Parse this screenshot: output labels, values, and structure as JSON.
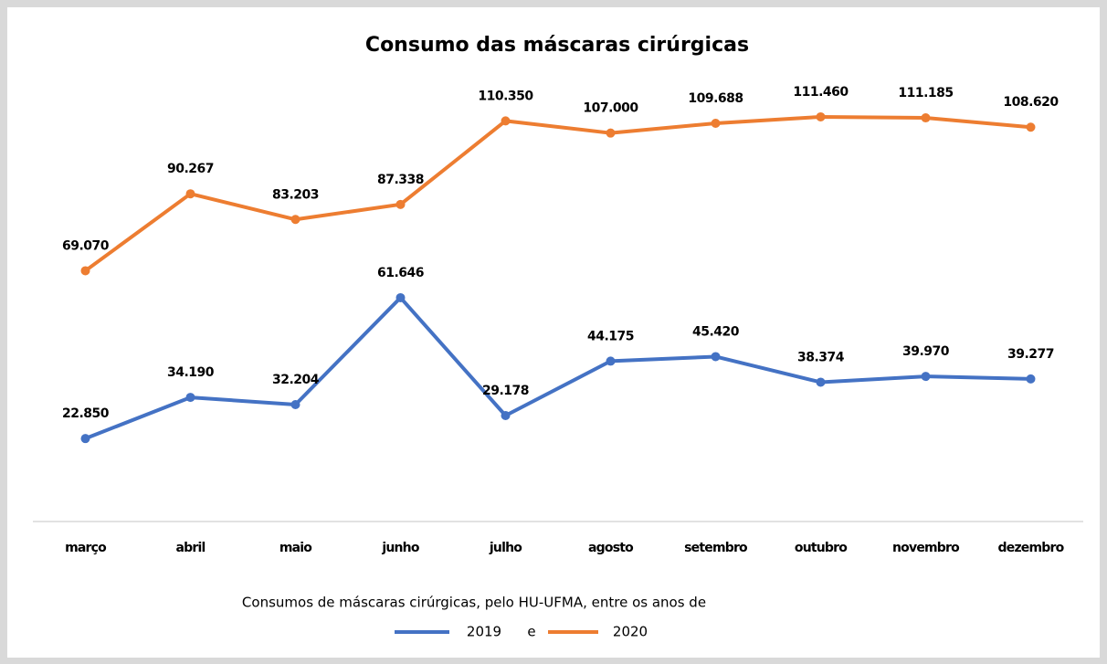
{
  "chart_data": {
    "type": "line",
    "title": "Consumo das máscaras cirúrgicas",
    "categories": [
      "março",
      "abril",
      "maio",
      "junho",
      "julho",
      "agosto",
      "setembro",
      "outubro",
      "novembro",
      "dezembro"
    ],
    "series": [
      {
        "name": "2019",
        "color": "#4472c4",
        "values": [
          22850,
          34190,
          32204,
          61646,
          29178,
          44175,
          45420,
          38374,
          39970,
          39277
        ],
        "value_labels": [
          "22.850",
          "34.190",
          "32.204",
          "61.646",
          "29.178",
          "44.175",
          "45.420",
          "38.374",
          "39.970",
          "39.277"
        ]
      },
      {
        "name": "2020",
        "color": "#ed7d31",
        "values": [
          69070,
          90267,
          83203,
          87338,
          110350,
          107000,
          109688,
          111460,
          111185,
          108620
        ],
        "value_labels": [
          "69.070",
          "90.267",
          "83.203",
          "87.338",
          "110.350",
          "107.000",
          "109.688",
          "111.460",
          "111.185",
          "108.620"
        ]
      }
    ],
    "ylim": [
      0,
      120000
    ],
    "legend_title": "Consumos de máscaras cirúrgicas, pelo HU-UFMA, entre os anos de",
    "legend_joiner": "e"
  }
}
